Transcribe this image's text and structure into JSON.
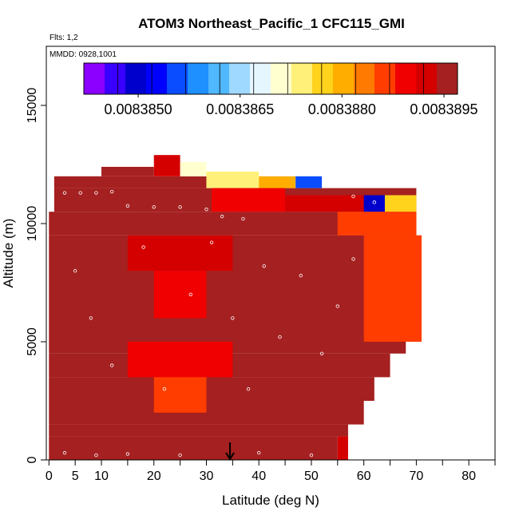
{
  "chart_data": {
    "type": "heatmap",
    "title": "ATOM3 Northeast_Pacific_1 CFC115_GMI",
    "flights_note": "Flts: 1,2",
    "dates_note": "MMDD: 0928,1001",
    "xlabel": "Latitude (deg N)",
    "ylabel": "Altitude (m)",
    "xlim": [
      -0.5,
      85
    ],
    "ylim": [
      0,
      17500
    ],
    "x_ticks": [
      0,
      5,
      10,
      20,
      30,
      40,
      50,
      60,
      70,
      80
    ],
    "x_tick_labels": [
      "0",
      "5",
      "10",
      "20",
      "30",
      "40",
      "50",
      "60",
      "70",
      "80"
    ],
    "x_minor_ticks": [
      15,
      25,
      35,
      45,
      55,
      65,
      75,
      85
    ],
    "y_ticks": [
      0,
      5000,
      10000,
      15000
    ],
    "y_tick_labels": [
      "0",
      "5000",
      "10000",
      "15000"
    ],
    "colorbar": {
      "min": 0.0083842,
      "max": 0.0083897,
      "ticks": [
        0.008385,
        0.0083865,
        0.008388,
        0.0083895
      ],
      "tick_labels": [
        "0.0083850",
        "0.0083865",
        "0.0083880",
        "0.0083895"
      ],
      "colors": [
        "#8b00ff",
        "#3a00ff",
        "#0000cc",
        "#0000ff",
        "#0a4cff",
        "#1e90ff",
        "#4fb8ff",
        "#9fd9ff",
        "#e6f6ff",
        "#ffffd0",
        "#fff07a",
        "#ffd21c",
        "#ffae00",
        "#ff7a00",
        "#ff3d00",
        "#f00000",
        "#d40000",
        "#a52020"
      ]
    },
    "marker_latitude": 34.5,
    "cells": [
      {
        "lat": [
          0,
          55
        ],
        "alt": [
          0,
          1000
        ],
        "value": 0.0083896
      },
      {
        "lat": [
          55,
          57
        ],
        "alt": [
          0,
          1000
        ],
        "value": 0.0083893
      },
      {
        "lat": [
          0,
          57
        ],
        "alt": [
          1000,
          1500
        ],
        "value": 0.0083896
      },
      {
        "lat": [
          0,
          60
        ],
        "alt": [
          1500,
          2500
        ],
        "value": 0.0083895
      },
      {
        "lat": [
          0,
          62
        ],
        "alt": [
          2500,
          3500
        ],
        "value": 0.0083895
      },
      {
        "lat": [
          0,
          65
        ],
        "alt": [
          3500,
          4500
        ],
        "value": 0.0083895
      },
      {
        "lat": [
          0,
          68
        ],
        "alt": [
          4500,
          5000
        ],
        "value": 0.0083894
      },
      {
        "lat": [
          0,
          71
        ],
        "alt": [
          5000,
          9500
        ],
        "value": 0.0083894
      },
      {
        "lat": [
          0,
          70
        ],
        "alt": [
          9500,
          10500
        ],
        "value": 0.0083894
      },
      {
        "lat": [
          1,
          70
        ],
        "alt": [
          10500,
          11500
        ],
        "value": 0.0083894
      },
      {
        "lat": [
          1,
          30
        ],
        "alt": [
          11500,
          12000
        ],
        "value": 0.0083895
      },
      {
        "lat": [
          10,
          20
        ],
        "alt": [
          12000,
          12400
        ],
        "value": 0.0083895
      },
      {
        "lat": [
          20,
          25
        ],
        "alt": [
          12000,
          12900
        ],
        "value": 0.0083893
      },
      {
        "lat": [
          25,
          30
        ],
        "alt": [
          12000,
          12600
        ],
        "value": 0.0083872
      },
      {
        "lat": [
          30,
          40
        ],
        "alt": [
          11500,
          12200
        ],
        "value": 0.0083875
      },
      {
        "lat": [
          40,
          47
        ],
        "alt": [
          11500,
          12000
        ],
        "value": 0.008388
      },
      {
        "lat": [
          47,
          52
        ],
        "alt": [
          11500,
          12000
        ],
        "value": 0.0083855
      },
      {
        "lat": [
          31,
          45
        ],
        "alt": [
          10500,
          11500
        ],
        "value": 0.008389
      },
      {
        "lat": [
          45,
          60
        ],
        "alt": [
          10500,
          11200
        ],
        "value": 0.0083892
      },
      {
        "lat": [
          60,
          64
        ],
        "alt": [
          10500,
          11200
        ],
        "value": 0.008385
      },
      {
        "lat": [
          64,
          70
        ],
        "alt": [
          10500,
          11200
        ],
        "value": 0.0083878
      },
      {
        "lat": [
          55,
          70
        ],
        "alt": [
          9500,
          10500
        ],
        "value": 0.0083887
      },
      {
        "lat": [
          60,
          71
        ],
        "alt": [
          5000,
          9500
        ],
        "value": 0.0083887
      },
      {
        "lat": [
          15,
          35
        ],
        "alt": [
          3500,
          5000
        ],
        "value": 0.0083888
      },
      {
        "lat": [
          20,
          30
        ],
        "alt": [
          2000,
          3500
        ],
        "value": 0.0083887
      },
      {
        "lat": [
          15,
          35
        ],
        "alt": [
          8000,
          9500
        ],
        "value": 0.0083892
      },
      {
        "lat": [
          20,
          30
        ],
        "alt": [
          6000,
          8000
        ],
        "value": 0.0083889
      }
    ],
    "data_points": [
      {
        "lat": 3,
        "alt": 11300
      },
      {
        "lat": 6,
        "alt": 11300
      },
      {
        "lat": 9,
        "alt": 11300
      },
      {
        "lat": 12,
        "alt": 11350
      },
      {
        "lat": 15,
        "alt": 10750
      },
      {
        "lat": 20,
        "alt": 10700
      },
      {
        "lat": 25,
        "alt": 10700
      },
      {
        "lat": 30,
        "alt": 10600
      },
      {
        "lat": 33,
        "alt": 10300
      },
      {
        "lat": 37,
        "alt": 10200
      },
      {
        "lat": 58,
        "alt": 11150
      },
      {
        "lat": 62,
        "alt": 10900
      },
      {
        "lat": 5,
        "alt": 8000
      },
      {
        "lat": 8,
        "alt": 6000
      },
      {
        "lat": 12,
        "alt": 4000
      },
      {
        "lat": 18,
        "alt": 9000
      },
      {
        "lat": 22,
        "alt": 3000
      },
      {
        "lat": 27,
        "alt": 7000
      },
      {
        "lat": 31,
        "alt": 9200
      },
      {
        "lat": 35,
        "alt": 6000
      },
      {
        "lat": 38,
        "alt": 3000
      },
      {
        "lat": 41,
        "alt": 8200
      },
      {
        "lat": 44,
        "alt": 5200
      },
      {
        "lat": 48,
        "alt": 7800
      },
      {
        "lat": 52,
        "alt": 4500
      },
      {
        "lat": 55,
        "alt": 6500
      },
      {
        "lat": 58,
        "alt": 8500
      },
      {
        "lat": 3,
        "alt": 300
      },
      {
        "lat": 9,
        "alt": 200
      },
      {
        "lat": 15,
        "alt": 250
      },
      {
        "lat": 25,
        "alt": 200
      },
      {
        "lat": 40,
        "alt": 300
      },
      {
        "lat": 50,
        "alt": 200
      }
    ]
  }
}
